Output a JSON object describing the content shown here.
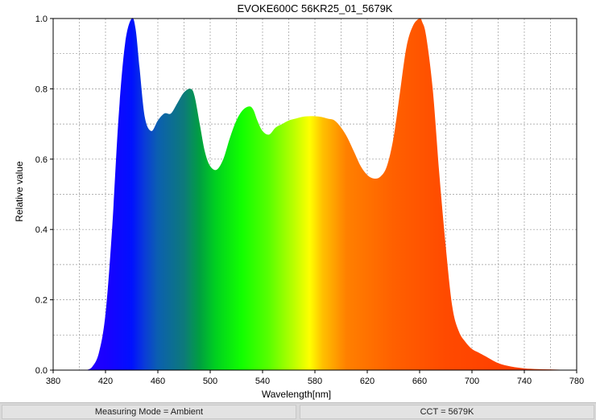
{
  "chart_data": {
    "type": "area",
    "title": "EVOKE600C 56KR25_01_5679K",
    "xlabel": "Wavelength[nm]",
    "ylabel": "Relative value",
    "xlim": [
      380,
      780
    ],
    "ylim": [
      0,
      1.0
    ],
    "xticks": [
      380,
      420,
      460,
      500,
      540,
      580,
      620,
      660,
      700,
      740,
      780
    ],
    "yticks": [
      0.0,
      0.2,
      0.4,
      0.6,
      0.8,
      1.0
    ],
    "grid": true,
    "fill": "visible-spectrum gradient",
    "series": [
      {
        "x": [
          400,
          405,
          410,
          415,
          420,
          425,
          430,
          435,
          440,
          443,
          446,
          450,
          455,
          460,
          465,
          470,
          475,
          480,
          485,
          488,
          492,
          496,
          500,
          505,
          510,
          515,
          520,
          525,
          530,
          533,
          536,
          540,
          545,
          550,
          555,
          560,
          565,
          570,
          575,
          580,
          585,
          590,
          595,
          600,
          605,
          610,
          615,
          620,
          625,
          630,
          635,
          640,
          645,
          650,
          655,
          660,
          662,
          665,
          670,
          675,
          680,
          685,
          690,
          695,
          700,
          705,
          710,
          720,
          730,
          740,
          750,
          760,
          770,
          780
        ],
        "y": [
          0.0,
          0.0,
          0.01,
          0.05,
          0.16,
          0.4,
          0.72,
          0.93,
          1.0,
          0.97,
          0.86,
          0.72,
          0.68,
          0.71,
          0.73,
          0.73,
          0.76,
          0.79,
          0.8,
          0.78,
          0.7,
          0.62,
          0.58,
          0.57,
          0.6,
          0.66,
          0.71,
          0.74,
          0.75,
          0.74,
          0.71,
          0.68,
          0.67,
          0.69,
          0.7,
          0.71,
          0.715,
          0.72,
          0.722,
          0.722,
          0.72,
          0.715,
          0.71,
          0.69,
          0.66,
          0.62,
          0.58,
          0.555,
          0.545,
          0.55,
          0.58,
          0.66,
          0.79,
          0.92,
          0.98,
          1.0,
          0.99,
          0.95,
          0.8,
          0.56,
          0.35,
          0.18,
          0.11,
          0.08,
          0.06,
          0.05,
          0.04,
          0.02,
          0.01,
          0.005,
          0.003,
          0.002,
          0.001,
          0.0
        ]
      }
    ]
  },
  "status": {
    "mode": "Measuring Mode = Ambient",
    "cct": "CCT = 5679K"
  },
  "colors": {
    "grid": "#9a9a9a",
    "axis": "#000000",
    "status_bg": "#d9d9d9"
  }
}
